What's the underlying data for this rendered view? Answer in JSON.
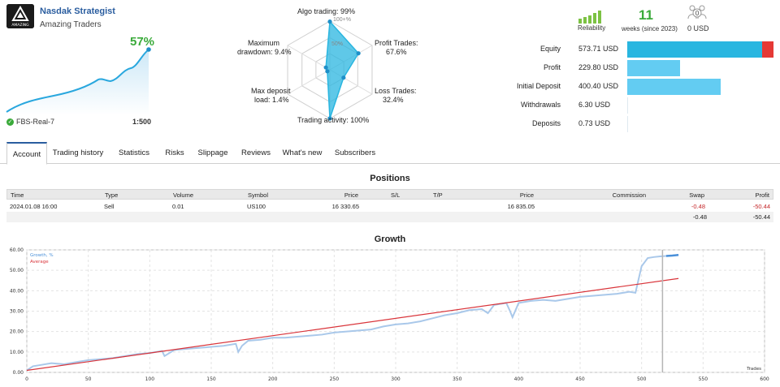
{
  "profile": {
    "strategy_name": "Nasdak Strategist",
    "author": "Amazing Traders",
    "logo_text": "AMAZING",
    "growth_percent": "57%",
    "account_server": "FBS-Real-7",
    "leverage": "1:500",
    "mini_chart_icon": "mini-growth-sparkline"
  },
  "radar": {
    "labels": {
      "algo_trading": "Algo trading: 99%",
      "profit_trades": "Profit Trades:",
      "profit_trades_value": "67.6%",
      "loss_trades": "Loss Trades:",
      "loss_trades_value": "32.4%",
      "trading_activity": "Trading activity: 100%",
      "max_deposit_load": "Max deposit",
      "max_deposit_load_value": "load: 1.4%",
      "max_drawdown": "Maximum",
      "max_drawdown_value": "drawdown: 9.4%"
    },
    "scale_100": "100+%",
    "scale_50": "50%",
    "values": {
      "algo_trading": 99,
      "profit_trades": 67.6,
      "loss_trades": 32.4,
      "trading_activity": 100,
      "max_deposit_load": 1.4,
      "max_drawdown": 9.4
    },
    "accent": "#29b6e0"
  },
  "stats": {
    "reliability_label": "Reliability",
    "weeks": "11",
    "weeks_label": "weeks (since 2023)",
    "subscribers_value": "0 USD",
    "subscribers_badge": "0",
    "reliability_bars": 5
  },
  "balances": [
    {
      "label": "Equity",
      "value": "573.71 USD",
      "fraction": 1.0,
      "color": "#29b6e0",
      "red_tail": true
    },
    {
      "label": "Profit",
      "value": "229.80 USD",
      "fraction": 0.36,
      "color": "#63ccf2"
    },
    {
      "label": "Initial Deposit",
      "value": "400.40 USD",
      "fraction": 0.64,
      "color": "#63ccf2"
    },
    {
      "label": "Withdrawals",
      "value": "6.30 USD",
      "fraction": 0.0,
      "color": "#63ccf2"
    },
    {
      "label": "Deposits",
      "value": "0.73 USD",
      "fraction": 0.0,
      "color": "#63ccf2"
    }
  ],
  "tabs": [
    "Account",
    "Trading history",
    "Statistics",
    "Risks",
    "Slippage",
    "Reviews",
    "What's new",
    "Subscribers"
  ],
  "positions": {
    "title": "Positions",
    "headers": [
      "Time",
      "Type",
      "Volume",
      "Symbol",
      "Price",
      "S/L",
      "T/P",
      "Price",
      "Commission",
      "Swap",
      "Profit"
    ],
    "rows": [
      [
        "2024.01.08 16:00",
        "Sell",
        "0.01",
        "US100",
        "16 330.65",
        "",
        "",
        "16 835.05",
        "",
        "-0.48",
        "-50.44"
      ]
    ],
    "totals": {
      "swap": "-0.48",
      "profit": "-50.44"
    }
  },
  "growth": {
    "title": "Growth",
    "legend_growth": "Growth, %",
    "legend_average": "Average",
    "x_axis_label": "Trades",
    "colors": {
      "growth": "#4a90d9",
      "growth_light": "#a9c8ea",
      "average": "#d9343a"
    }
  },
  "chart_data": {
    "type": "line",
    "title": "Growth",
    "xlabel": "Trades",
    "ylabel": "",
    "xlim": [
      0,
      600
    ],
    "ylim": [
      0,
      60
    ],
    "x_ticks": [
      0,
      50,
      100,
      150,
      200,
      250,
      300,
      350,
      400,
      450,
      500,
      550,
      600
    ],
    "y_ticks": [
      "0.00",
      "10.00",
      "20.00",
      "30.00",
      "40.00",
      "50.00",
      "60.00"
    ],
    "series": [
      {
        "name": "Growth, %",
        "x": [
          0,
          5,
          10,
          20,
          30,
          40,
          50,
          60,
          70,
          80,
          90,
          100,
          110,
          112,
          120,
          130,
          140,
          150,
          160,
          170,
          172,
          175,
          180,
          190,
          200,
          210,
          220,
          230,
          240,
          250,
          260,
          270,
          280,
          290,
          300,
          310,
          320,
          330,
          340,
          350,
          360,
          370,
          375,
          380,
          390,
          393,
          395,
          400,
          410,
          420,
          430,
          440,
          450,
          460,
          470,
          480,
          490,
          495,
          500,
          505,
          510,
          515,
          520,
          525,
          530
        ],
        "y": [
          1,
          3,
          3.5,
          4.5,
          4,
          5,
          6,
          6.5,
          7,
          8,
          9,
          9.5,
          10.5,
          8,
          11,
          11.5,
          12,
          12.5,
          13,
          14,
          10,
          13,
          15.5,
          16,
          17,
          17,
          17.5,
          18,
          18.5,
          19.5,
          20,
          20.5,
          21,
          22.5,
          23.5,
          24,
          25,
          26.5,
          28,
          29,
          30.5,
          31,
          29,
          33,
          34,
          30,
          27,
          34,
          35,
          35.5,
          35,
          36,
          37,
          37.5,
          38,
          38.5,
          39.5,
          39,
          52,
          56,
          56.5,
          56.8,
          57,
          57.2,
          57.5
        ]
      },
      {
        "name": "Average",
        "x": [
          0,
          530
        ],
        "y": [
          1,
          46
        ]
      }
    ],
    "grid": true,
    "cursor_x": 517,
    "legend": "top-left"
  }
}
